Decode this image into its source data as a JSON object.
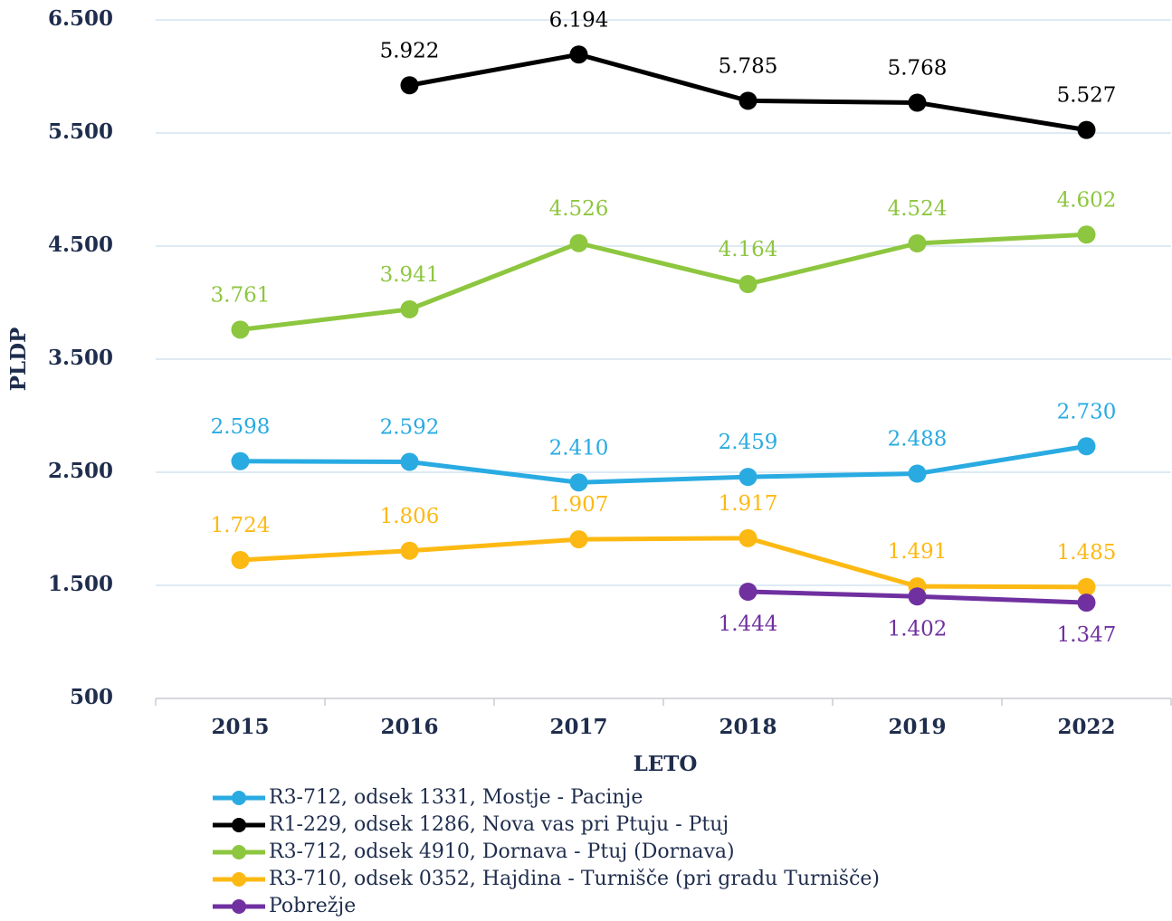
{
  "chart_data": {
    "type": "line",
    "y_label": "PLDP",
    "x_label": "LETO",
    "categories": [
      "2015",
      "2016",
      "2017",
      "2018",
      "2019",
      "2022"
    ],
    "ylim": [
      500,
      6500
    ],
    "yticks": [
      500,
      {
        "value": 1500,
        "label": "1.500"
      },
      {
        "value": 2500,
        "label": "2.500"
      },
      {
        "value": 3500,
        "label": "3.500"
      },
      {
        "value": 4500,
        "label": "4.500"
      },
      {
        "value": 5500,
        "label": "5.500"
      },
      {
        "value": 6500,
        "label": "6.500"
      }
    ],
    "grid": true,
    "legend": "bottom",
    "series": [
      {
        "name": "R3-712, odsek 1331, Mostje - Pacinje",
        "color": "#29abe2",
        "label_position": "above",
        "values": [
          2598,
          2592,
          2410,
          2459,
          2488,
          2730
        ],
        "value_labels": [
          "2.598",
          "2.592",
          "2.410",
          "2.459",
          "2.488",
          "2.730"
        ]
      },
      {
        "name": "R1-229, odsek 1286, Nova vas pri Ptuju - Ptuj",
        "color": "#000000",
        "label_position": "above",
        "values": [
          null,
          5922,
          6194,
          5785,
          5768,
          5527
        ],
        "value_labels": [
          null,
          "5.922",
          "6.194",
          "5.785",
          "5.768",
          "5.527"
        ]
      },
      {
        "name": "R3-712, odsek 4910, Dornava - Ptuj (Dornava)",
        "color": "#8dc63f",
        "label_position": "above",
        "values": [
          3761,
          3941,
          4526,
          4164,
          4524,
          4602
        ],
        "value_labels": [
          "3.761",
          "3.941",
          "4.526",
          "4.164",
          "4.524",
          "4.602"
        ]
      },
      {
        "name": "R3-710, odsek 0352, Hajdina - Turnišče (pri gradu Turnišče)",
        "color": "#fdb913",
        "label_position": "above",
        "values": [
          1724,
          1806,
          1907,
          1917,
          1491,
          1485
        ],
        "value_labels": [
          "1.724",
          "1.806",
          "1.907",
          "1.917",
          "1.491",
          "1.485"
        ]
      },
      {
        "name": "Pobrežje",
        "color": "#7030a0",
        "label_position": "below",
        "values": [
          null,
          null,
          null,
          1444,
          1402,
          1347
        ],
        "value_labels": [
          null,
          null,
          null,
          "1.444",
          "1.402",
          "1.347"
        ]
      }
    ]
  }
}
